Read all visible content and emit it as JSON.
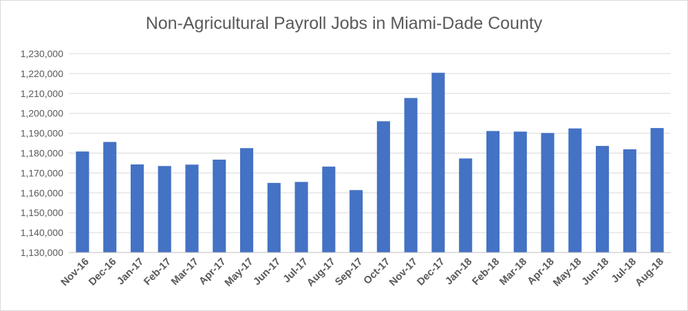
{
  "chart_data": {
    "type": "bar",
    "title": "Non-Agricultural Payroll Jobs in Miami-Dade County",
    "xlabel": "",
    "ylabel": "",
    "categories": [
      "Nov-16",
      "Dec-16",
      "Jan-17",
      "Feb-17",
      "Mar-17",
      "Apr-17",
      "May-17",
      "Jun-17",
      "Jul-17",
      "Aug-17",
      "Sep-17",
      "Oct-17",
      "Nov-17",
      "Dec-17",
      "Jan-18",
      "Feb-18",
      "Mar-18",
      "Apr-18",
      "May-18",
      "Jun-18",
      "Jul-18",
      "Aug-18"
    ],
    "values": [
      1180800,
      1185600,
      1174300,
      1173500,
      1174200,
      1176700,
      1182500,
      1165000,
      1165500,
      1173200,
      1161400,
      1196000,
      1207700,
      1220400,
      1177300,
      1191100,
      1190800,
      1190100,
      1192400,
      1183600,
      1181900,
      1192600
    ],
    "ylim": [
      1130000,
      1230000
    ],
    "yticks": [
      1130000,
      1140000,
      1150000,
      1160000,
      1170000,
      1180000,
      1190000,
      1200000,
      1210000,
      1220000,
      1230000
    ],
    "ytick_labels": [
      "1,130,000",
      "1,140,000",
      "1,150,000",
      "1,160,000",
      "1,170,000",
      "1,180,000",
      "1,190,000",
      "1,200,000",
      "1,210,000",
      "1,220,000",
      "1,230,000"
    ],
    "grid": true,
    "legend": "none",
    "bar_color": "#4472c4",
    "grid_color": "#d9d9d9",
    "axis_color": "#bfbfbf"
  }
}
